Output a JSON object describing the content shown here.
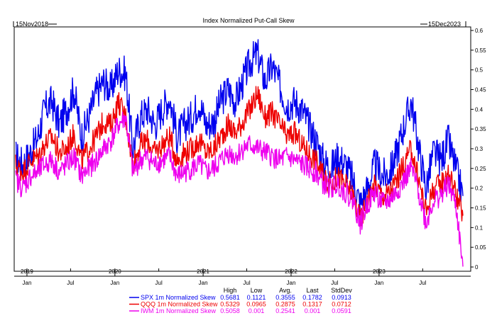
{
  "chart_data": {
    "type": "line",
    "title": "Index Normalized Put-Call Skew",
    "start_label": "15Nov2018",
    "end_label": "15Dec2023",
    "x_range": [
      "2018-11-15",
      "2023-12-15"
    ],
    "ylim": [
      0,
      0.6
    ],
    "y_ticks": [
      0,
      0.05,
      0.1,
      0.15,
      0.2,
      0.25,
      0.3,
      0.35,
      0.4,
      0.45,
      0.5,
      0.55,
      0.6
    ],
    "grid": false,
    "month_ticks": [
      {
        "label": "Jan",
        "date": "2019-01-01"
      },
      {
        "label": "Jul",
        "date": "2019-07-01"
      },
      {
        "label": "Jan",
        "date": "2020-01-01"
      },
      {
        "label": "Jul",
        "date": "2020-07-01"
      },
      {
        "label": "Jan",
        "date": "2021-01-01"
      },
      {
        "label": "Jul",
        "date": "2021-07-01"
      },
      {
        "label": "Jan",
        "date": "2022-01-01"
      },
      {
        "label": "Jul",
        "date": "2022-07-01"
      },
      {
        "label": "Jan",
        "date": "2023-01-01"
      },
      {
        "label": "Jul",
        "date": "2023-07-01"
      }
    ],
    "year_labels": [
      {
        "label": "2019",
        "date": "2019-01-01"
      },
      {
        "label": "2020",
        "date": "2020-01-01"
      },
      {
        "label": "2021",
        "date": "2021-01-01"
      },
      {
        "label": "2022",
        "date": "2022-01-01"
      },
      {
        "label": "2023",
        "date": "2023-01-01"
      }
    ],
    "stat_headers": [
      "High",
      "Low",
      "Avg.",
      "Last",
      "StdDev"
    ],
    "series": [
      {
        "name": "SPX 1m Normalized Skew",
        "color": "#0000ee",
        "stats": [
          "0.5681",
          "0.1121",
          "0.3555",
          "0.1782",
          "0.0913"
        ],
        "points": [
          [
            "2018-11-15",
            0.28
          ],
          [
            "2018-12-15",
            0.26
          ],
          [
            "2019-01-15",
            0.29
          ],
          [
            "2019-02-15",
            0.33
          ],
          [
            "2019-03-15",
            0.4
          ],
          [
            "2019-04-15",
            0.42
          ],
          [
            "2019-05-15",
            0.36
          ],
          [
            "2019-06-15",
            0.4
          ],
          [
            "2019-07-15",
            0.45
          ],
          [
            "2019-08-15",
            0.33
          ],
          [
            "2019-09-15",
            0.38
          ],
          [
            "2019-10-15",
            0.44
          ],
          [
            "2019-11-15",
            0.47
          ],
          [
            "2019-12-15",
            0.45
          ],
          [
            "2020-01-15",
            0.5
          ],
          [
            "2020-02-15",
            0.49
          ],
          [
            "2020-03-15",
            0.3
          ],
          [
            "2020-04-15",
            0.38
          ],
          [
            "2020-05-15",
            0.4
          ],
          [
            "2020-06-15",
            0.36
          ],
          [
            "2020-07-15",
            0.4
          ],
          [
            "2020-08-15",
            0.43
          ],
          [
            "2020-09-15",
            0.33
          ],
          [
            "2020-10-15",
            0.36
          ],
          [
            "2020-11-15",
            0.38
          ],
          [
            "2020-12-15",
            0.42
          ],
          [
            "2021-01-15",
            0.36
          ],
          [
            "2021-02-15",
            0.37
          ],
          [
            "2021-03-15",
            0.42
          ],
          [
            "2021-04-15",
            0.45
          ],
          [
            "2021-05-15",
            0.42
          ],
          [
            "2021-06-15",
            0.47
          ],
          [
            "2021-07-15",
            0.52
          ],
          [
            "2021-08-15",
            0.54
          ],
          [
            "2021-09-15",
            0.47
          ],
          [
            "2021-10-15",
            0.51
          ],
          [
            "2021-11-15",
            0.46
          ],
          [
            "2021-12-15",
            0.41
          ],
          [
            "2022-01-15",
            0.42
          ],
          [
            "2022-02-15",
            0.4
          ],
          [
            "2022-03-15",
            0.36
          ],
          [
            "2022-04-15",
            0.32
          ],
          [
            "2022-05-15",
            0.27
          ],
          [
            "2022-06-15",
            0.25
          ],
          [
            "2022-07-15",
            0.28
          ],
          [
            "2022-08-15",
            0.26
          ],
          [
            "2022-09-15",
            0.22
          ],
          [
            "2022-10-15",
            0.16
          ],
          [
            "2022-11-15",
            0.2
          ],
          [
            "2022-12-15",
            0.26
          ],
          [
            "2023-01-15",
            0.23
          ],
          [
            "2023-02-15",
            0.24
          ],
          [
            "2023-03-15",
            0.29
          ],
          [
            "2023-04-15",
            0.36
          ],
          [
            "2023-05-15",
            0.42
          ],
          [
            "2023-06-15",
            0.3
          ],
          [
            "2023-07-15",
            0.2
          ],
          [
            "2023-08-15",
            0.29
          ],
          [
            "2023-09-15",
            0.27
          ],
          [
            "2023-10-15",
            0.32
          ],
          [
            "2023-11-15",
            0.25
          ],
          [
            "2023-12-15",
            0.18
          ]
        ]
      },
      {
        "name": "QQQ 1m Normalized Skew",
        "color": "#ee0000",
        "stats": [
          "0.5329",
          "0.0965",
          "0.2875",
          "0.1317",
          "0.0712"
        ],
        "points": [
          [
            "2018-11-15",
            0.26
          ],
          [
            "2018-12-15",
            0.24
          ],
          [
            "2019-01-15",
            0.27
          ],
          [
            "2019-02-15",
            0.28
          ],
          [
            "2019-03-15",
            0.31
          ],
          [
            "2019-04-15",
            0.33
          ],
          [
            "2019-05-15",
            0.29
          ],
          [
            "2019-06-15",
            0.3
          ],
          [
            "2019-07-15",
            0.34
          ],
          [
            "2019-08-15",
            0.27
          ],
          [
            "2019-09-15",
            0.3
          ],
          [
            "2019-10-15",
            0.33
          ],
          [
            "2019-11-15",
            0.37
          ],
          [
            "2019-12-15",
            0.36
          ],
          [
            "2020-01-15",
            0.42
          ],
          [
            "2020-02-15",
            0.38
          ],
          [
            "2020-03-15",
            0.26
          ],
          [
            "2020-04-15",
            0.31
          ],
          [
            "2020-05-15",
            0.32
          ],
          [
            "2020-06-15",
            0.29
          ],
          [
            "2020-07-15",
            0.31
          ],
          [
            "2020-08-15",
            0.33
          ],
          [
            "2020-09-15",
            0.27
          ],
          [
            "2020-10-15",
            0.29
          ],
          [
            "2020-11-15",
            0.3
          ],
          [
            "2020-12-15",
            0.32
          ],
          [
            "2021-01-15",
            0.29
          ],
          [
            "2021-02-15",
            0.3
          ],
          [
            "2021-03-15",
            0.33
          ],
          [
            "2021-04-15",
            0.36
          ],
          [
            "2021-05-15",
            0.34
          ],
          [
            "2021-06-15",
            0.37
          ],
          [
            "2021-07-15",
            0.4
          ],
          [
            "2021-08-15",
            0.44
          ],
          [
            "2021-09-15",
            0.38
          ],
          [
            "2021-10-15",
            0.39
          ],
          [
            "2021-11-15",
            0.36
          ],
          [
            "2021-12-15",
            0.33
          ],
          [
            "2022-01-15",
            0.34
          ],
          [
            "2022-02-15",
            0.31
          ],
          [
            "2022-03-15",
            0.29
          ],
          [
            "2022-04-15",
            0.27
          ],
          [
            "2022-05-15",
            0.23
          ],
          [
            "2022-06-15",
            0.21
          ],
          [
            "2022-07-15",
            0.23
          ],
          [
            "2022-08-15",
            0.21
          ],
          [
            "2022-09-15",
            0.18
          ],
          [
            "2022-10-15",
            0.12
          ],
          [
            "2022-11-15",
            0.17
          ],
          [
            "2022-12-15",
            0.21
          ],
          [
            "2023-01-15",
            0.18
          ],
          [
            "2023-02-15",
            0.19
          ],
          [
            "2023-03-15",
            0.22
          ],
          [
            "2023-04-15",
            0.26
          ],
          [
            "2023-05-15",
            0.3
          ],
          [
            "2023-06-15",
            0.22
          ],
          [
            "2023-07-15",
            0.14
          ],
          [
            "2023-08-15",
            0.2
          ],
          [
            "2023-09-15",
            0.21
          ],
          [
            "2023-10-15",
            0.24
          ],
          [
            "2023-11-15",
            0.19
          ],
          [
            "2023-12-15",
            0.13
          ]
        ]
      },
      {
        "name": "IWM 1m Normalized Skew",
        "color": "#ee00ee",
        "stats": [
          "0.5058",
          "0.001",
          "0.2541",
          "0.001",
          "0.0591"
        ],
        "points": [
          [
            "2018-11-15",
            0.22
          ],
          [
            "2018-12-15",
            0.2
          ],
          [
            "2019-01-15",
            0.23
          ],
          [
            "2019-02-15",
            0.24
          ],
          [
            "2019-03-15",
            0.26
          ],
          [
            "2019-04-15",
            0.27
          ],
          [
            "2019-05-15",
            0.24
          ],
          [
            "2019-06-15",
            0.26
          ],
          [
            "2019-07-15",
            0.28
          ],
          [
            "2019-08-15",
            0.23
          ],
          [
            "2019-09-15",
            0.25
          ],
          [
            "2019-10-15",
            0.27
          ],
          [
            "2019-11-15",
            0.3
          ],
          [
            "2019-12-15",
            0.32
          ],
          [
            "2020-01-15",
            0.36
          ],
          [
            "2020-02-15",
            0.38
          ],
          [
            "2020-03-15",
            0.24
          ],
          [
            "2020-04-15",
            0.27
          ],
          [
            "2020-05-15",
            0.28
          ],
          [
            "2020-06-15",
            0.26
          ],
          [
            "2020-07-15",
            0.27
          ],
          [
            "2020-08-15",
            0.28
          ],
          [
            "2020-09-15",
            0.23
          ],
          [
            "2020-10-15",
            0.24
          ],
          [
            "2020-11-15",
            0.25
          ],
          [
            "2020-12-15",
            0.26
          ],
          [
            "2021-01-15",
            0.24
          ],
          [
            "2021-02-15",
            0.25
          ],
          [
            "2021-03-15",
            0.27
          ],
          [
            "2021-04-15",
            0.29
          ],
          [
            "2021-05-15",
            0.28
          ],
          [
            "2021-06-15",
            0.3
          ],
          [
            "2021-07-15",
            0.31
          ],
          [
            "2021-08-15",
            0.3
          ],
          [
            "2021-09-15",
            0.29
          ],
          [
            "2021-10-15",
            0.28
          ],
          [
            "2021-11-15",
            0.27
          ],
          [
            "2021-12-15",
            0.28
          ],
          [
            "2022-01-15",
            0.27
          ],
          [
            "2022-02-15",
            0.26
          ],
          [
            "2022-03-15",
            0.25
          ],
          [
            "2022-04-15",
            0.24
          ],
          [
            "2022-05-15",
            0.21
          ],
          [
            "2022-06-15",
            0.2
          ],
          [
            "2022-07-15",
            0.21
          ],
          [
            "2022-08-15",
            0.19
          ],
          [
            "2022-09-15",
            0.17
          ],
          [
            "2022-10-15",
            0.11
          ],
          [
            "2022-11-15",
            0.16
          ],
          [
            "2022-12-15",
            0.19
          ],
          [
            "2023-01-15",
            0.16
          ],
          [
            "2023-02-15",
            0.17
          ],
          [
            "2023-03-15",
            0.19
          ],
          [
            "2023-04-15",
            0.22
          ],
          [
            "2023-05-15",
            0.25
          ],
          [
            "2023-06-15",
            0.19
          ],
          [
            "2023-07-15",
            0.11
          ],
          [
            "2023-08-15",
            0.17
          ],
          [
            "2023-09-15",
            0.18
          ],
          [
            "2023-10-15",
            0.21
          ],
          [
            "2023-11-15",
            0.16
          ],
          [
            "2023-12-15",
            0.001
          ]
        ]
      }
    ]
  }
}
